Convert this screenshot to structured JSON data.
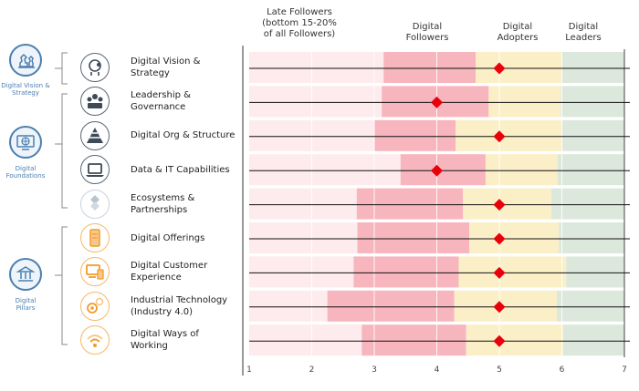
{
  "headers": {
    "late_followers": "Late Followers\n(bottom 15-20%\nof all Followers)",
    "digital_followers": "Digital\nFollowers",
    "digital_adopters": "Digital\nAdopters",
    "digital_leaders": "Digital\nLeaders"
  },
  "pillars": [
    {
      "label": "Digital Vision &\nStrategy",
      "icon": "chess-strategy-icon"
    },
    {
      "label": "Digital\nFoundations",
      "icon": "globe-screen-icon"
    },
    {
      "label": "Digital\nPillars",
      "icon": "building-columns-icon"
    }
  ],
  "colors": {
    "late": "#fdebed",
    "followers": "#f7b5bd",
    "adopters": "#fbefc7",
    "leaders": "#dde8dd",
    "marker": "#e8000b",
    "pillar_blue": "#4a7fb0",
    "icon_dark": "#3d4a58",
    "icon_orange": "#f39a2a"
  },
  "chart_data": {
    "type": "bar",
    "orientation": "horizontal-range",
    "xlim": [
      1,
      7
    ],
    "x_ticks": [
      "1",
      "2",
      "3",
      "4",
      "5",
      "6",
      "7"
    ],
    "categories": [
      "Digital Vision & Strategy",
      "Leadership & Governance",
      "Digital Org & Structure",
      "Data & IT Capabilities",
      "Ecosystems &\nPartnerships",
      "Digital Offerings",
      "Digital Customer\nExperience",
      "Industrial Technology\n(Industry 4.0)",
      "Digital Ways of Working"
    ],
    "icons": [
      "head-gear-icon",
      "people-meeting-icon",
      "pyramid-icon",
      "laptop-icon",
      "puzzle-icon",
      "tablet-icon",
      "devices-icon",
      "gears-icon",
      "wifi-icon"
    ],
    "icon_colors": [
      "dark",
      "dark",
      "dark",
      "dark",
      "light",
      "orange",
      "orange",
      "orange",
      "orange"
    ],
    "late_start": [
      1,
      1,
      1,
      1,
      1,
      1,
      1,
      1,
      1
    ],
    "followers_start": [
      3.15,
      3.12,
      3.0,
      3.42,
      2.72,
      2.73,
      2.67,
      2.25,
      2.8
    ],
    "adopters_start": [
      4.62,
      4.83,
      4.3,
      4.78,
      4.42,
      4.52,
      4.35,
      4.28,
      4.47
    ],
    "leaders_start": [
      6.0,
      5.98,
      6.0,
      5.93,
      5.83,
      5.95,
      6.07,
      5.92,
      6.02
    ],
    "end": 7,
    "score": [
      5,
      4,
      5,
      4,
      5,
      5,
      5,
      5,
      5
    ]
  }
}
